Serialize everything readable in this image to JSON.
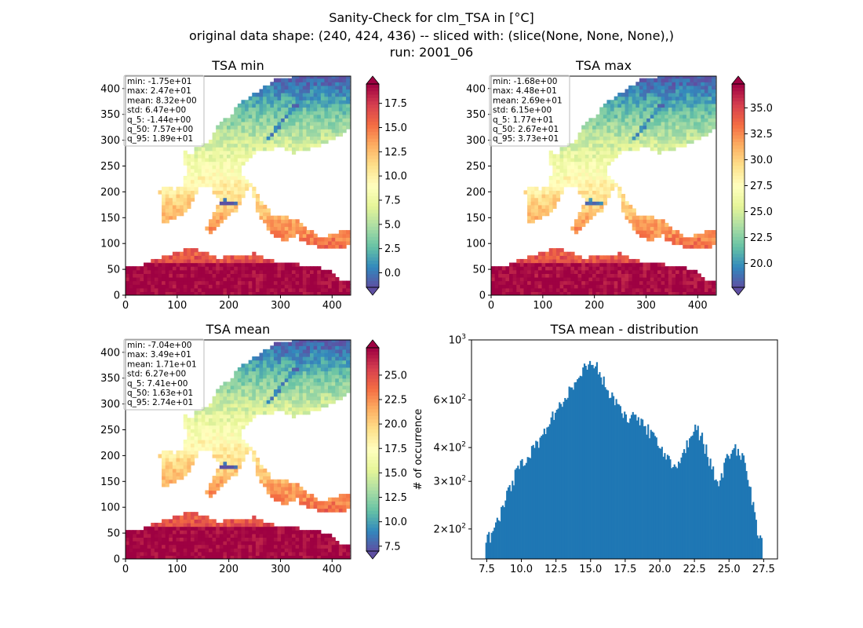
{
  "figure": {
    "title_lines": [
      "Sanity-Check for clm_TSA in [°C]",
      "original data shape: (240, 424, 436) -- sliced with: (slice(None, None, None),)",
      "run: 2001_06"
    ]
  },
  "colormap": [
    "#5e4fa2",
    "#3288bd",
    "#66c2a5",
    "#abdda4",
    "#e6f598",
    "#ffffbf",
    "#fee08b",
    "#fdae61",
    "#f46d43",
    "#d53e4f",
    "#9e0142"
  ],
  "land_extent": [
    0,
    436,
    0,
    424
  ],
  "chart_data": [
    {
      "type": "heatmap",
      "title": "TSA min",
      "xlim": [
        0,
        436
      ],
      "ylim": [
        0,
        424
      ],
      "x_ticks": [
        0,
        100,
        200,
        300,
        400
      ],
      "y_ticks": [
        0,
        50,
        100,
        150,
        200,
        250,
        300,
        350,
        400
      ],
      "colorbar": {
        "min": -1.5,
        "max": 19.5,
        "ticks": [
          "0.0",
          "2.5",
          "5.0",
          "7.5",
          "10.0",
          "12.5",
          "15.0",
          "17.5"
        ],
        "tick_values": [
          0,
          2.5,
          5,
          7.5,
          10,
          12.5,
          15,
          17.5
        ]
      },
      "stats": [
        "min: -1.75e+01",
        "max: 2.47e+01",
        "mean: 8.32e+00",
        "std: 6.47e+00",
        "q_5: -1.44e+00",
        "q_50: 7.57e+00",
        "q_95: 1.89e+01"
      ]
    },
    {
      "type": "heatmap",
      "title": "TSA max",
      "xlim": [
        0,
        436
      ],
      "ylim": [
        0,
        424
      ],
      "x_ticks": [
        0,
        100,
        200,
        300,
        400
      ],
      "y_ticks": [
        0,
        50,
        100,
        150,
        200,
        250,
        300,
        350,
        400
      ],
      "colorbar": {
        "min": 17.7,
        "max": 37.3,
        "ticks": [
          "20.0",
          "22.5",
          "25.0",
          "27.5",
          "30.0",
          "32.5",
          "35.0"
        ],
        "tick_values": [
          20,
          22.5,
          25,
          27.5,
          30,
          32.5,
          35
        ]
      },
      "stats": [
        "min: -1.68e+00",
        "max: 4.48e+01",
        "mean: 2.69e+01",
        "std: 6.15e+00",
        "q_5: 1.77e+01",
        "q_50: 2.67e+01",
        "q_95: 3.73e+01"
      ]
    },
    {
      "type": "heatmap",
      "title": "TSA mean",
      "xlim": [
        0,
        436
      ],
      "ylim": [
        0,
        424
      ],
      "x_ticks": [
        0,
        100,
        200,
        300,
        400
      ],
      "y_ticks": [
        0,
        50,
        100,
        150,
        200,
        250,
        300,
        350,
        400
      ],
      "colorbar": {
        "min": 7.0,
        "max": 27.8,
        "ticks": [
          "7.5",
          "10.0",
          "12.5",
          "15.0",
          "17.5",
          "20.0",
          "22.5",
          "25.0"
        ],
        "tick_values": [
          7.5,
          10,
          12.5,
          15,
          17.5,
          20,
          22.5,
          25
        ]
      },
      "stats": [
        "min: -7.04e+00",
        "max: 3.49e+01",
        "mean: 1.71e+01",
        "std: 6.27e+00",
        "q_5: 7.41e+00",
        "q_50: 1.63e+01",
        "q_95: 2.74e+01"
      ]
    },
    {
      "type": "bar",
      "title": "TSA mean - distribution",
      "ylabel": "# of occurrence",
      "y_scale": "log",
      "xlim": [
        6.4,
        28.5
      ],
      "ylim": [
        155,
        1000
      ],
      "x_ticks": [
        "7.5",
        "10.0",
        "12.5",
        "15.0",
        "17.5",
        "20.0",
        "22.5",
        "25.0",
        "27.5"
      ],
      "x_tick_values": [
        7.5,
        10,
        12.5,
        15,
        17.5,
        20,
        22.5,
        25,
        27.5
      ],
      "y_ticks": [
        {
          "value": 1000,
          "base": "10",
          "exp": "3"
        },
        {
          "value": 600,
          "base": "6×10",
          "exp": "2"
        },
        {
          "value": 400,
          "base": "4×10",
          "exp": "2"
        },
        {
          "value": 300,
          "base": "3×10",
          "exp": "2"
        },
        {
          "value": 200,
          "base": "2×10",
          "exp": "2"
        }
      ],
      "bin_range": [
        7.4,
        27.4
      ],
      "series": [
        {
          "color": "#1f77b4",
          "anchors": [
            [
              7.4,
              185
            ],
            [
              7.8,
              190
            ],
            [
              8.5,
              230
            ],
            [
              9.5,
              310
            ],
            [
              10.5,
              380
            ],
            [
              11.5,
              440
            ],
            [
              12.5,
              540
            ],
            [
              13.5,
              660
            ],
            [
              14.5,
              770
            ],
            [
              15.0,
              850
            ],
            [
              15.5,
              780
            ],
            [
              16.5,
              620
            ],
            [
              17.5,
              530
            ],
            [
              18.5,
              500
            ],
            [
              19.5,
              440
            ],
            [
              20.5,
              360
            ],
            [
              21.2,
              330
            ],
            [
              22.0,
              420
            ],
            [
              22.5,
              470
            ],
            [
              23.0,
              440
            ],
            [
              23.8,
              330
            ],
            [
              24.3,
              300
            ],
            [
              25.0,
              380
            ],
            [
              25.5,
              400
            ],
            [
              26.0,
              370
            ],
            [
              26.6,
              270
            ],
            [
              27.0,
              200
            ],
            [
              27.4,
              180
            ]
          ]
        }
      ]
    }
  ]
}
